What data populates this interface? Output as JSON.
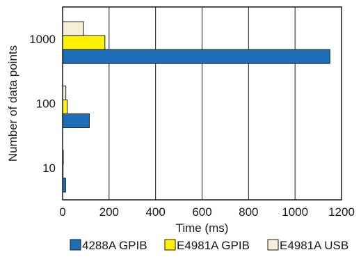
{
  "chart_data": {
    "type": "bar",
    "orientation": "horizontal",
    "categories": [
      "10",
      "100",
      "1000"
    ],
    "series": [
      {
        "name": "4288A GPIB",
        "color": "#1e6fb8",
        "values": [
          13,
          115,
          1150
        ]
      },
      {
        "name": "E4981A GPIB",
        "color": "#fff200",
        "values": [
          2,
          20,
          182
        ]
      },
      {
        "name": "E4981A USB",
        "color": "#f3f0d6",
        "values": [
          3,
          14,
          90
        ]
      }
    ],
    "xlabel": "Time (ms)",
    "ylabel": "Number of data points",
    "xlim": [
      0,
      1200
    ],
    "xticks": [
      "0",
      "200",
      "400",
      "600",
      "800",
      "1000",
      "1200"
    ],
    "grid": true,
    "legend_position": "bottom"
  }
}
